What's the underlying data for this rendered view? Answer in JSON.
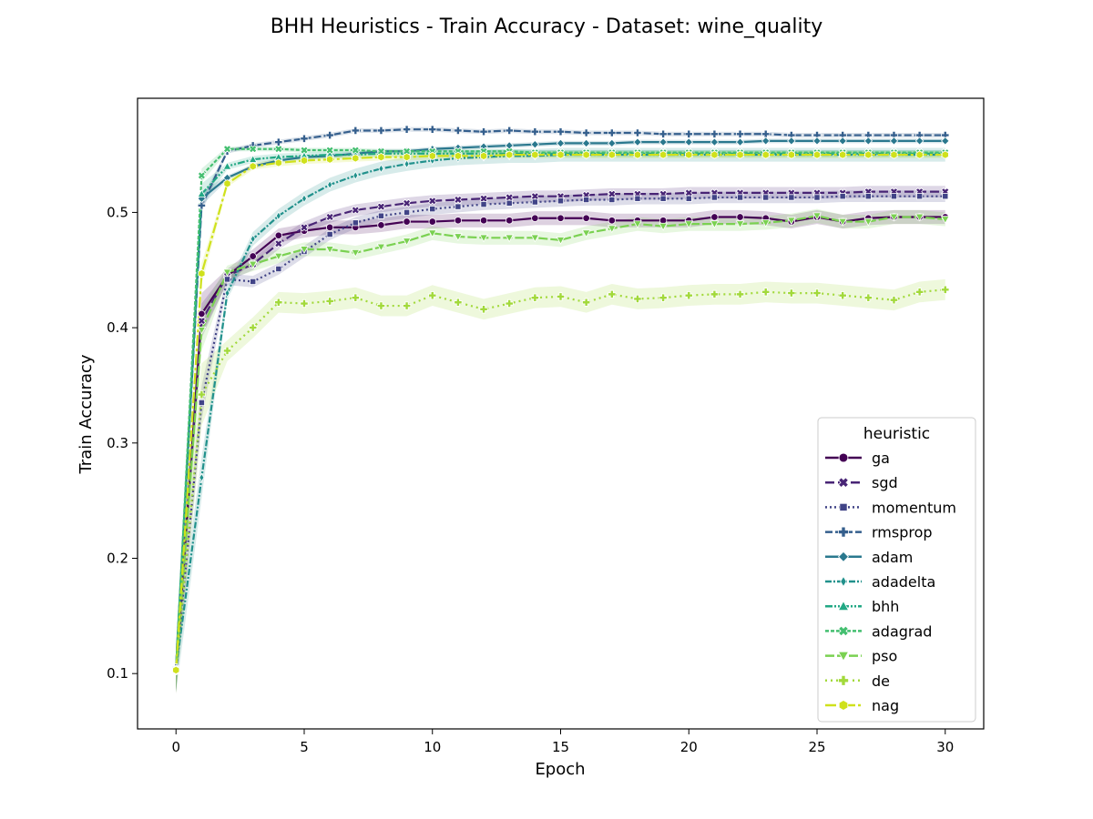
{
  "chart_data": {
    "type": "line",
    "title": "BHH Heuristics - Train Accuracy - Dataset: wine_quality",
    "xlabel": "Epoch",
    "ylabel": "Train Accuracy",
    "xlim": [
      -1.5,
      31.5
    ],
    "ylim": [
      0.052,
      0.599
    ],
    "xticks": [
      0,
      5,
      10,
      15,
      20,
      25,
      30
    ],
    "yticks": [
      0.1,
      0.2,
      0.3,
      0.4,
      0.5
    ],
    "grid": false,
    "legend": {
      "title": "heuristic",
      "placement": "lower-right"
    },
    "x": [
      0,
      1,
      2,
      3,
      4,
      5,
      6,
      7,
      8,
      9,
      10,
      11,
      12,
      13,
      14,
      15,
      16,
      17,
      18,
      19,
      20,
      21,
      22,
      23,
      24,
      25,
      26,
      27,
      28,
      29,
      30
    ],
    "series": [
      {
        "name": "ga",
        "color": "#440154",
        "dash": "",
        "marker": "circle",
        "values": [
          0.102,
          0.412,
          0.445,
          0.462,
          0.48,
          0.484,
          0.487,
          0.487,
          0.489,
          0.492,
          0.492,
          0.493,
          0.493,
          0.493,
          0.495,
          0.495,
          0.495,
          0.493,
          0.493,
          0.493,
          0.493,
          0.496,
          0.496,
          0.495,
          0.492,
          0.496,
          0.492,
          0.495,
          0.496,
          0.496,
          0.496
        ],
        "band": 0.006
      },
      {
        "name": "sgd",
        "color": "#482475",
        "dash": "10,4",
        "marker": "x",
        "values": [
          0.104,
          0.406,
          0.445,
          0.455,
          0.473,
          0.487,
          0.496,
          0.502,
          0.505,
          0.508,
          0.51,
          0.511,
          0.512,
          0.513,
          0.514,
          0.514,
          0.515,
          0.516,
          0.516,
          0.516,
          0.517,
          0.517,
          0.517,
          0.517,
          0.517,
          0.517,
          0.517,
          0.518,
          0.518,
          0.518,
          0.518
        ],
        "band": 0.005
      },
      {
        "name": "momentum",
        "color": "#414487",
        "dash": "2,3",
        "marker": "square",
        "values": [
          0.104,
          0.335,
          0.442,
          0.44,
          0.451,
          0.466,
          0.481,
          0.491,
          0.497,
          0.5,
          0.503,
          0.505,
          0.507,
          0.508,
          0.509,
          0.51,
          0.511,
          0.511,
          0.512,
          0.512,
          0.512,
          0.513,
          0.513,
          0.513,
          0.513,
          0.513,
          0.514,
          0.514,
          0.514,
          0.514,
          0.514
        ],
        "band": 0.005
      },
      {
        "name": "rmsprop",
        "color": "#355f8d",
        "dash": "8,3",
        "marker": "plus",
        "values": [
          0.105,
          0.506,
          0.553,
          0.558,
          0.561,
          0.564,
          0.567,
          0.571,
          0.571,
          0.572,
          0.572,
          0.571,
          0.57,
          0.571,
          0.57,
          0.57,
          0.569,
          0.569,
          0.569,
          0.568,
          0.568,
          0.568,
          0.568,
          0.568,
          0.567,
          0.567,
          0.567,
          0.567,
          0.567,
          0.567,
          0.567
        ],
        "band": 0.002
      },
      {
        "name": "adam",
        "color": "#2a788e",
        "dash": "",
        "marker": "diamond",
        "values": [
          0.104,
          0.512,
          0.53,
          0.54,
          0.545,
          0.548,
          0.549,
          0.551,
          0.553,
          0.553,
          0.555,
          0.556,
          0.557,
          0.558,
          0.559,
          0.56,
          0.56,
          0.56,
          0.561,
          0.561,
          0.561,
          0.561,
          0.561,
          0.562,
          0.562,
          0.562,
          0.562,
          0.562,
          0.562,
          0.562,
          0.562
        ],
        "band": 0.002
      },
      {
        "name": "adadelta",
        "color": "#21918c",
        "dash": "7,2,2,2",
        "marker": "thin_diamond",
        "values": [
          0.104,
          0.27,
          0.43,
          0.477,
          0.497,
          0.512,
          0.524,
          0.532,
          0.538,
          0.542,
          0.545,
          0.547,
          0.548,
          0.549,
          0.549,
          0.55,
          0.55,
          0.55,
          0.55,
          0.55,
          0.55,
          0.55,
          0.55,
          0.55,
          0.55,
          0.55,
          0.55,
          0.55,
          0.55,
          0.55,
          0.55
        ],
        "band": 0.006
      },
      {
        "name": "bhh",
        "color": "#22a884",
        "dash": "8,2,2,2,2,2",
        "marker": "triangle-up",
        "values": [
          0.104,
          0.516,
          0.54,
          0.546,
          0.548,
          0.549,
          0.55,
          0.55,
          0.551,
          0.551,
          0.551,
          0.551,
          0.551,
          0.551,
          0.551,
          0.551,
          0.551,
          0.551,
          0.551,
          0.551,
          0.551,
          0.551,
          0.551,
          0.551,
          0.551,
          0.551,
          0.551,
          0.551,
          0.551,
          0.551,
          0.551
        ],
        "band": 0.003
      },
      {
        "name": "adagrad",
        "color": "#44bf70",
        "dash": "4,2",
        "marker": "filled-x",
        "values": [
          0.103,
          0.532,
          0.555,
          0.555,
          0.555,
          0.554,
          0.554,
          0.554,
          0.553,
          0.553,
          0.553,
          0.553,
          0.553,
          0.553,
          0.552,
          0.552,
          0.552,
          0.552,
          0.552,
          0.552,
          0.552,
          0.552,
          0.552,
          0.552,
          0.552,
          0.552,
          0.552,
          0.552,
          0.552,
          0.552,
          0.552
        ],
        "band": 0.002
      },
      {
        "name": "pso",
        "color": "#7ad151",
        "dash": "10,3",
        "marker": "triangle-down",
        "values": [
          0.103,
          0.398,
          0.448,
          0.455,
          0.462,
          0.468,
          0.468,
          0.465,
          0.47,
          0.475,
          0.482,
          0.479,
          0.478,
          0.478,
          0.478,
          0.476,
          0.482,
          0.486,
          0.49,
          0.488,
          0.49,
          0.49,
          0.49,
          0.491,
          0.493,
          0.497,
          0.492,
          0.492,
          0.496,
          0.496,
          0.494
        ],
        "band": 0.006
      },
      {
        "name": "de",
        "color": "#a2d93b",
        "dash": "2,4",
        "marker": "filled-plus",
        "values": [
          0.103,
          0.342,
          0.38,
          0.4,
          0.422,
          0.421,
          0.423,
          0.426,
          0.419,
          0.419,
          0.428,
          0.422,
          0.416,
          0.421,
          0.426,
          0.427,
          0.422,
          0.429,
          0.425,
          0.426,
          0.428,
          0.429,
          0.429,
          0.431,
          0.43,
          0.43,
          0.428,
          0.426,
          0.424,
          0.431,
          0.433
        ],
        "band": 0.009
      },
      {
        "name": "nag",
        "color": "#cfe11c",
        "dash": "12,3,3,3",
        "marker": "hexagon",
        "values": [
          0.103,
          0.447,
          0.525,
          0.54,
          0.543,
          0.545,
          0.546,
          0.547,
          0.548,
          0.548,
          0.549,
          0.549,
          0.549,
          0.55,
          0.55,
          0.55,
          0.55,
          0.55,
          0.55,
          0.55,
          0.55,
          0.55,
          0.55,
          0.55,
          0.55,
          0.55,
          0.55,
          0.55,
          0.55,
          0.55,
          0.55
        ],
        "band": 0.003
      }
    ]
  }
}
